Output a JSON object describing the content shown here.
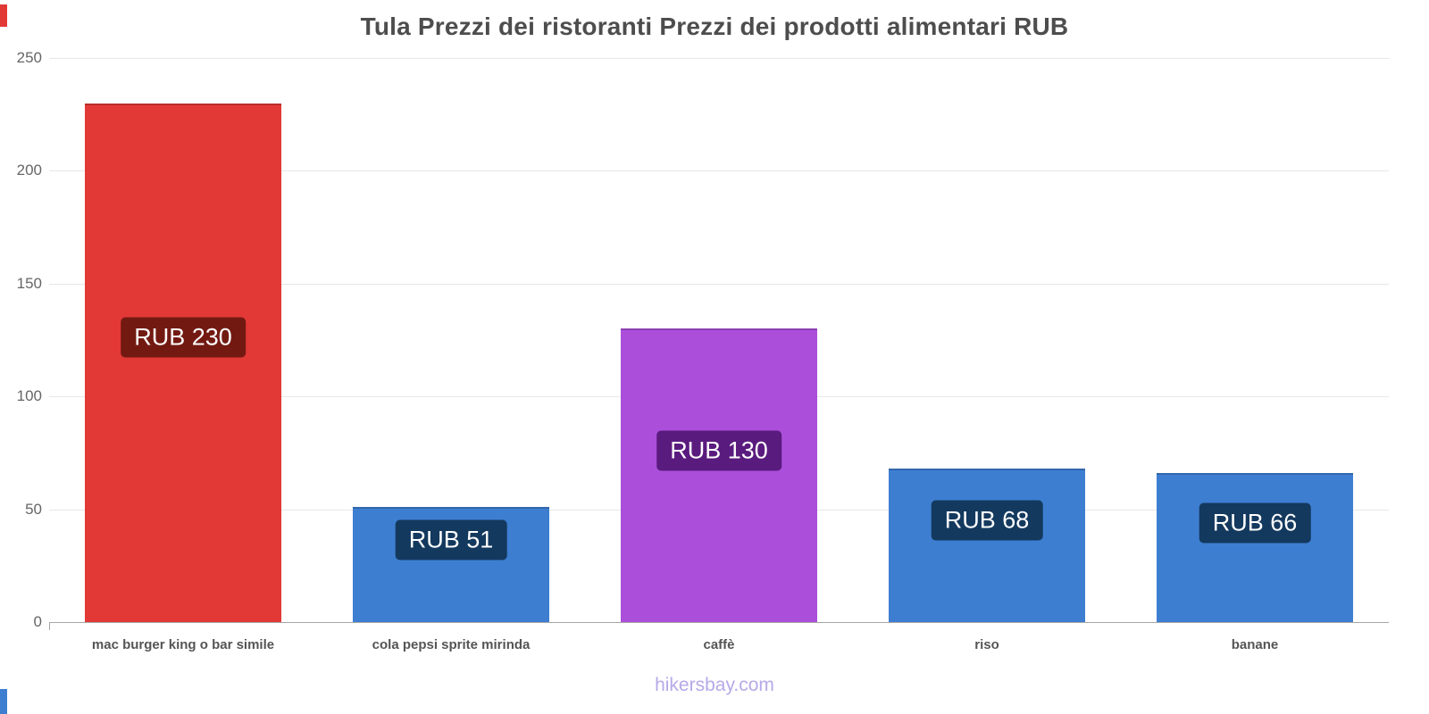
{
  "chart_data": {
    "type": "bar",
    "title": "Tula Prezzi dei ristoranti Prezzi dei prodotti alimentari RUB",
    "categories": [
      "mac burger king o bar simile",
      "cola pepsi sprite mirinda",
      "caffè",
      "riso",
      "banane"
    ],
    "values": [
      230,
      51,
      130,
      68,
      66
    ],
    "value_labels": [
      "RUB 230",
      "RUB 51",
      "RUB 130",
      "RUB 68",
      "RUB 66"
    ],
    "bar_colors": [
      "#e23936",
      "#3d7ed1",
      "#ab4fdb",
      "#3d7ed1",
      "#3d7ed1"
    ],
    "badge_colors": [
      "#721a12",
      "#14395e",
      "#5a1b7e",
      "#14395e",
      "#14395e"
    ],
    "xlabel": "",
    "ylabel": "",
    "ylim": [
      0,
      250
    ],
    "yticks": [
      0,
      50,
      100,
      150,
      200,
      250
    ],
    "grid": true,
    "legend": "none"
  },
  "footer": {
    "brand": "hikersbay.com"
  },
  "accents": {
    "top_left_color": "#e23936",
    "bottom_left_color": "#3d7ed1"
  }
}
